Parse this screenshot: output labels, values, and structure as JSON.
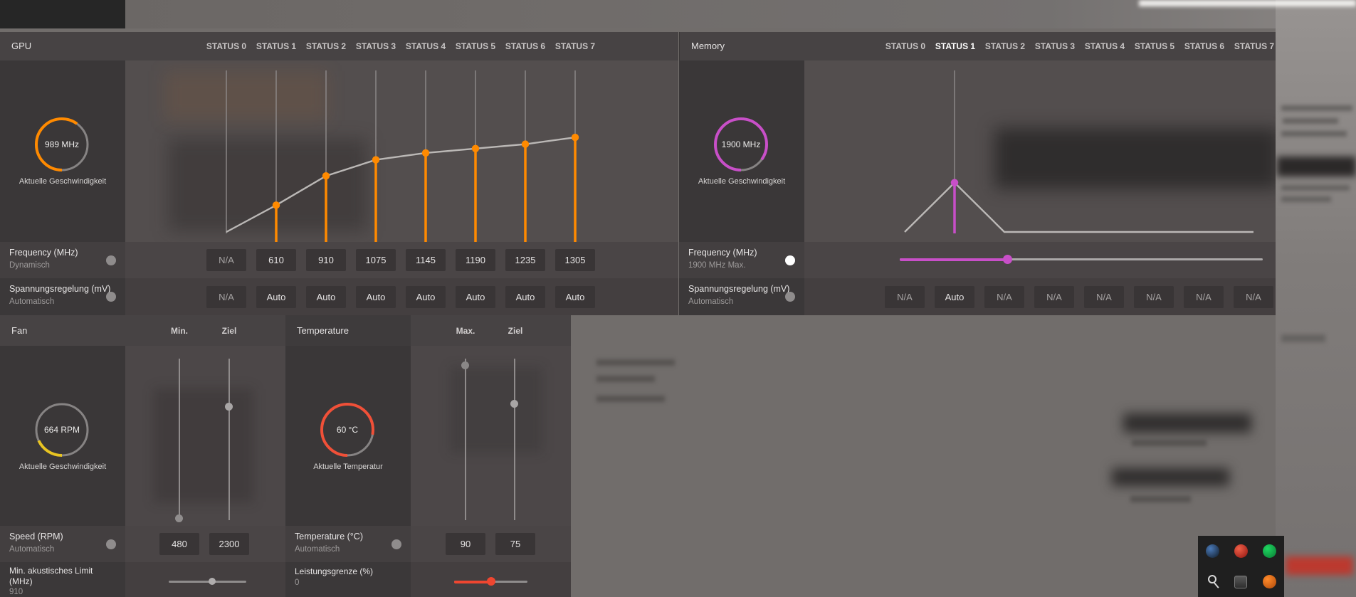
{
  "colors": {
    "gpu_accent": "#ff8a00",
    "memory_accent": "#c84fc8",
    "fan_accent": "#e8c422",
    "temperature_accent": "#f05038"
  },
  "gpu": {
    "title": "GPU",
    "statuses": [
      "STATUS 0",
      "STATUS 1",
      "STATUS 2",
      "STATUS 3",
      "STATUS 4",
      "STATUS 5",
      "STATUS 6",
      "STATUS 7"
    ],
    "gauge_value": "989 MHz",
    "gauge_label": "Aktuelle Geschwindigkeit",
    "rows": {
      "frequency": {
        "label": "Frequency (MHz)",
        "mode": "Dynamisch",
        "values": [
          "N/A",
          "610",
          "910",
          "1075",
          "1145",
          "1190",
          "1235",
          "1305"
        ]
      },
      "voltage": {
        "label": "Spannungsregelung (mV)",
        "mode": "Automatisch",
        "values": [
          "N/A",
          "Auto",
          "Auto",
          "Auto",
          "Auto",
          "Auto",
          "Auto",
          "Auto"
        ]
      }
    }
  },
  "memory": {
    "title": "Memory",
    "statuses": [
      "STATUS 0",
      "STATUS 1",
      "STATUS 2",
      "STATUS 3",
      "STATUS 4",
      "STATUS 5",
      "STATUS 6",
      "STATUS 7"
    ],
    "selected_status": "STATUS 1",
    "gauge_value": "1900 MHz",
    "gauge_label": "Aktuelle Geschwindigkeit",
    "rows": {
      "frequency": {
        "label": "Frequency (MHz)",
        "mode": "1900 MHz Max.",
        "toggle_on": true
      },
      "voltage": {
        "label": "Spannungsregelung (mV)",
        "mode": "Automatisch",
        "values": [
          "N/A",
          "Auto",
          "N/A",
          "N/A",
          "N/A",
          "N/A",
          "N/A",
          "N/A"
        ]
      }
    }
  },
  "fan": {
    "title": "Fan",
    "columns": [
      "Min.",
      "Ziel"
    ],
    "gauge_value": "664 RPM",
    "gauge_label": "Aktuelle Geschwindigkeit",
    "rows": {
      "speed": {
        "label": "Speed (RPM)",
        "mode": "Automatisch",
        "values": [
          "480",
          "2300"
        ]
      },
      "acoustic_limit": {
        "label": "Min. akustisches Limit (MHz)",
        "value": "910"
      }
    }
  },
  "temperature": {
    "title": "Temperature",
    "columns": [
      "Max.",
      "Ziel"
    ],
    "gauge_value": "60 °C",
    "gauge_label": "Aktuelle Temperatur",
    "rows": {
      "temp": {
        "label": "Temperature (°C)",
        "mode": "Automatisch",
        "values": [
          "90",
          "75"
        ]
      },
      "power_limit": {
        "label": "Leistungsgrenze (%)",
        "value": "0"
      }
    }
  },
  "chart_data": [
    {
      "type": "line",
      "title": "GPU Frequency per Status",
      "x": [
        "STATUS 0",
        "STATUS 1",
        "STATUS 2",
        "STATUS 3",
        "STATUS 4",
        "STATUS 5",
        "STATUS 6",
        "STATUS 7"
      ],
      "series": [
        {
          "name": "Frequency (MHz)",
          "values": [
            null,
            610,
            910,
            1075,
            1145,
            1190,
            1235,
            1305
          ]
        }
      ],
      "ylabel": "MHz",
      "ylim": [
        350,
        1400
      ],
      "grid": "vertical-status-lines",
      "legend": "none",
      "accent": "#ff8a00"
    },
    {
      "type": "line",
      "title": "Memory Frequency per Status",
      "x": [
        "STATUS 0",
        "STATUS 1",
        "STATUS 2",
        "STATUS 3",
        "STATUS 4",
        "STATUS 5",
        "STATUS 6",
        "STATUS 7"
      ],
      "series": [
        {
          "name": "Frequency (MHz)",
          "values": [
            null,
            1900,
            null,
            null,
            null,
            null,
            null,
            null
          ]
        }
      ],
      "ylabel": "MHz",
      "ylim": [
        0,
        4000
      ],
      "grid": "selected-status-line",
      "legend": "none",
      "accent": "#c84fc8",
      "selected_index": 1
    }
  ],
  "tray": {
    "icons": [
      {
        "name": "steam-icon",
        "shape": "circle",
        "color": "#4a7ab8",
        "color2": "#101a26"
      },
      {
        "name": "red-app-icon",
        "shape": "circle",
        "color": "#f06048",
        "color2": "#8e1410"
      },
      {
        "name": "spotify-icon",
        "shape": "circle",
        "color": "#1ed760",
        "color2": "#0a7a34"
      },
      {
        "name": "key-icon",
        "shape": "key",
        "color": "#d8d8d8"
      },
      {
        "name": "screenshot-icon",
        "shape": "square",
        "color": "#5a5a5a",
        "color2": "#2e2e2e"
      },
      {
        "name": "orange-app-icon",
        "shape": "circle",
        "color": "#ff8a2a",
        "color2": "#b04a0a"
      }
    ]
  }
}
